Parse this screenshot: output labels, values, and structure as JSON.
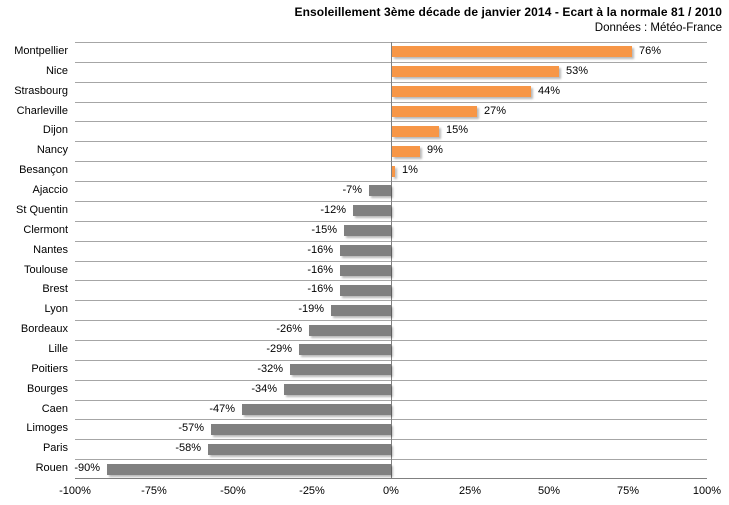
{
  "header": {
    "title": "Ensoleillement 3ème décade de janvier 2014 - Ecart à la normale 81 / 2010",
    "subtitle": "Données : Météo-France"
  },
  "chart_data": {
    "type": "bar",
    "orientation": "horizontal",
    "title": "Ensoleillement 3ème décade de janvier 2014 - Ecart à la normale 81 / 2010",
    "subtitle": "Données : Météo-France",
    "categories": [
      "Montpellier",
      "Nice",
      "Strasbourg",
      "Charleville",
      "Dijon",
      "Nancy",
      "Besançon",
      "Ajaccio",
      "St Quentin",
      "Clermont",
      "Nantes",
      "Toulouse",
      "Brest",
      "Lyon",
      "Bordeaux",
      "Lille",
      "Poitiers",
      "Bourges",
      "Caen",
      "Limoges",
      "Paris",
      "Rouen"
    ],
    "values": [
      76,
      53,
      44,
      27,
      15,
      9,
      1,
      -7,
      -12,
      -15,
      -16,
      -16,
      -16,
      -19,
      -26,
      -29,
      -32,
      -34,
      -47,
      -57,
      -58,
      -90
    ],
    "data_labels": [
      "76%",
      "53%",
      "44%",
      "27%",
      "15%",
      "9%",
      "1%",
      "-7%",
      "-12%",
      "-15%",
      "-16%",
      "-16%",
      "-16%",
      "-19%",
      "-26%",
      "-29%",
      "-32%",
      "-34%",
      "-47%",
      "-57%",
      "-58%",
      "-90%"
    ],
    "xlabel": "",
    "ylabel": "",
    "xlim": [
      -100,
      100
    ],
    "x_ticks": [
      {
        "value": -100,
        "label": "-100%"
      },
      {
        "value": -75,
        "label": "-75%"
      },
      {
        "value": -50,
        "label": "-50%"
      },
      {
        "value": -25,
        "label": "-25%"
      },
      {
        "value": 0,
        "label": "0%"
      },
      {
        "value": 25,
        "label": "25%"
      },
      {
        "value": 50,
        "label": "50%"
      },
      {
        "value": 75,
        "label": "75%"
      },
      {
        "value": 100,
        "label": "100%"
      }
    ],
    "legend": "none",
    "grid": "horizontal category separators and zero line",
    "colors": {
      "positive_bar": "#F79646",
      "negative_bar": "#808080",
      "gridline": "#A6A6A6",
      "axis": "#808080",
      "text": "#000000",
      "background": "#FFFFFF"
    }
  }
}
